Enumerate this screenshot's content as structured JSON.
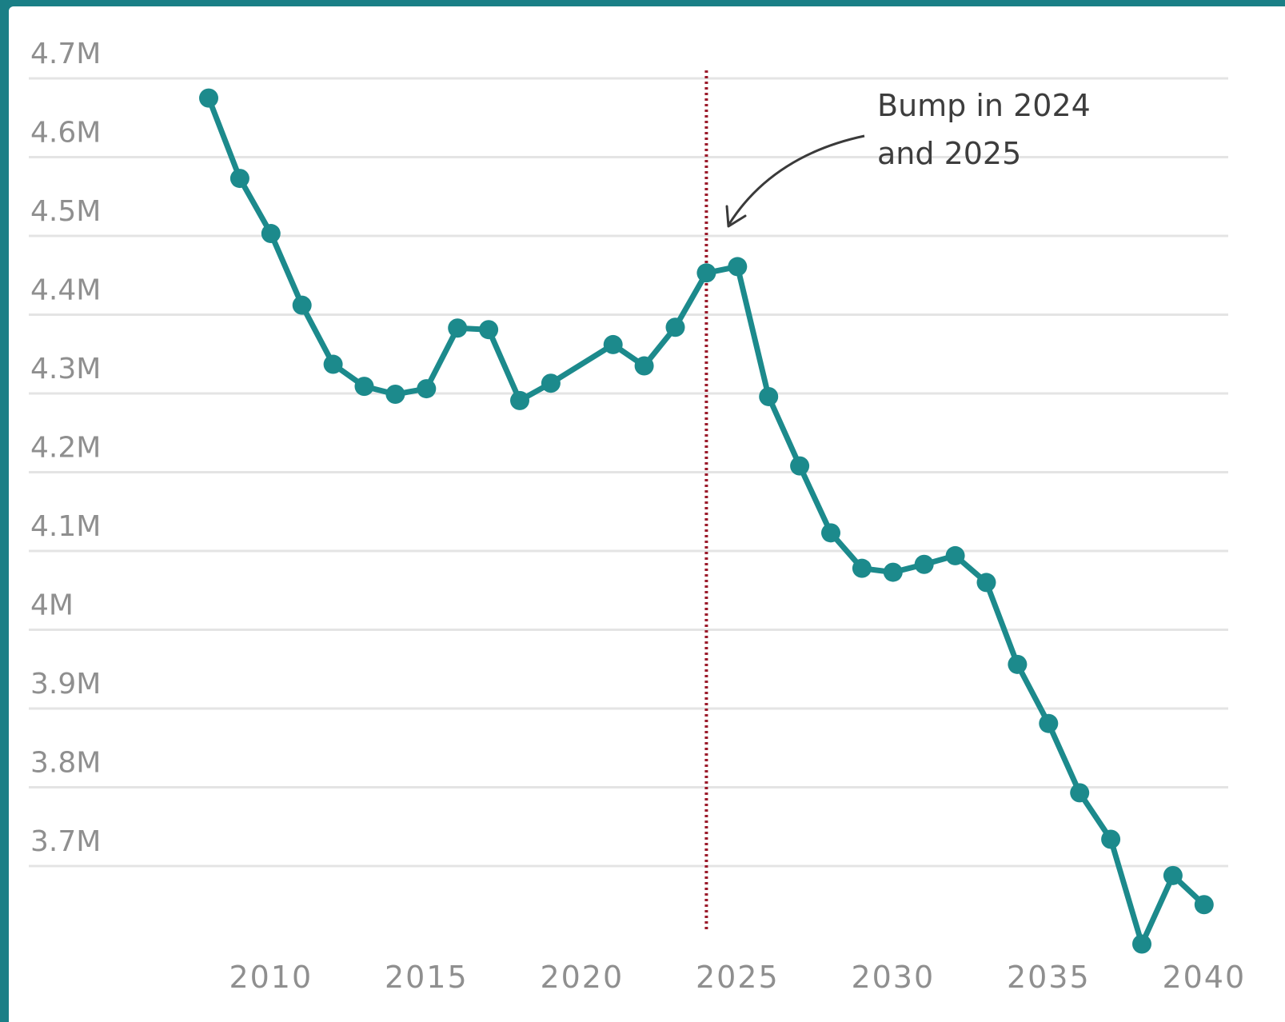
{
  "chart_data": {
    "type": "line",
    "title": "",
    "xlabel": "",
    "ylabel": "",
    "x": [
      2008,
      2009,
      2010,
      2011,
      2012,
      2013,
      2014,
      2015,
      2016,
      2017,
      2018,
      2019,
      2021,
      2022,
      2023,
      2024,
      2025,
      2026,
      2027,
      2028,
      2029,
      2030,
      2031,
      2032,
      2033,
      2034,
      2035,
      2036,
      2037,
      2038,
      2039,
      2040
    ],
    "series": [
      {
        "values": [
          4.675,
          4.573,
          4.503,
          4.412,
          4.337,
          4.309,
          4.299,
          4.306,
          4.383,
          4.381,
          4.291,
          4.313,
          4.362,
          4.335,
          4.384,
          4.453,
          4.461,
          4.296,
          4.208,
          4.123,
          4.078,
          4.073,
          4.083,
          4.094,
          4.06,
          3.956,
          3.881,
          3.793,
          3.734,
          3.601,
          3.688,
          3.651
        ]
      }
    ],
    "x_ticks": [
      2010,
      2015,
      2020,
      2025,
      2030,
      2035,
      2040
    ],
    "x_tick_labels": [
      "2010",
      "2015",
      "2020",
      "2025",
      "2030",
      "2035",
      "2040"
    ],
    "y_ticks": [
      4.7,
      4.6,
      4.5,
      4.4,
      4.3,
      4.2,
      4.1,
      4.0,
      3.9,
      3.8,
      3.7
    ],
    "y_tick_labels": [
      "4.7M",
      "4.6M",
      "4.5M",
      "4.4M",
      "4.3M",
      "4.2M",
      "4.1M",
      "4M",
      "3.9M",
      "3.8M",
      "3.7M"
    ],
    "ylim": [
      3.6,
      4.7
    ],
    "xlim": [
      2008,
      2040
    ],
    "grid": true,
    "reference_line": {
      "x": 2024,
      "style": "dotted"
    },
    "annotation": {
      "lines": [
        "Bump in 2024",
        "and 2025"
      ],
      "points_to_x": 2024
    },
    "colors": {
      "line": "#1c8a8c",
      "reference": "#9b1b2b",
      "background": "#1a7f86",
      "grid": "#e4e4e4",
      "tick": "#8f8f8f"
    }
  }
}
